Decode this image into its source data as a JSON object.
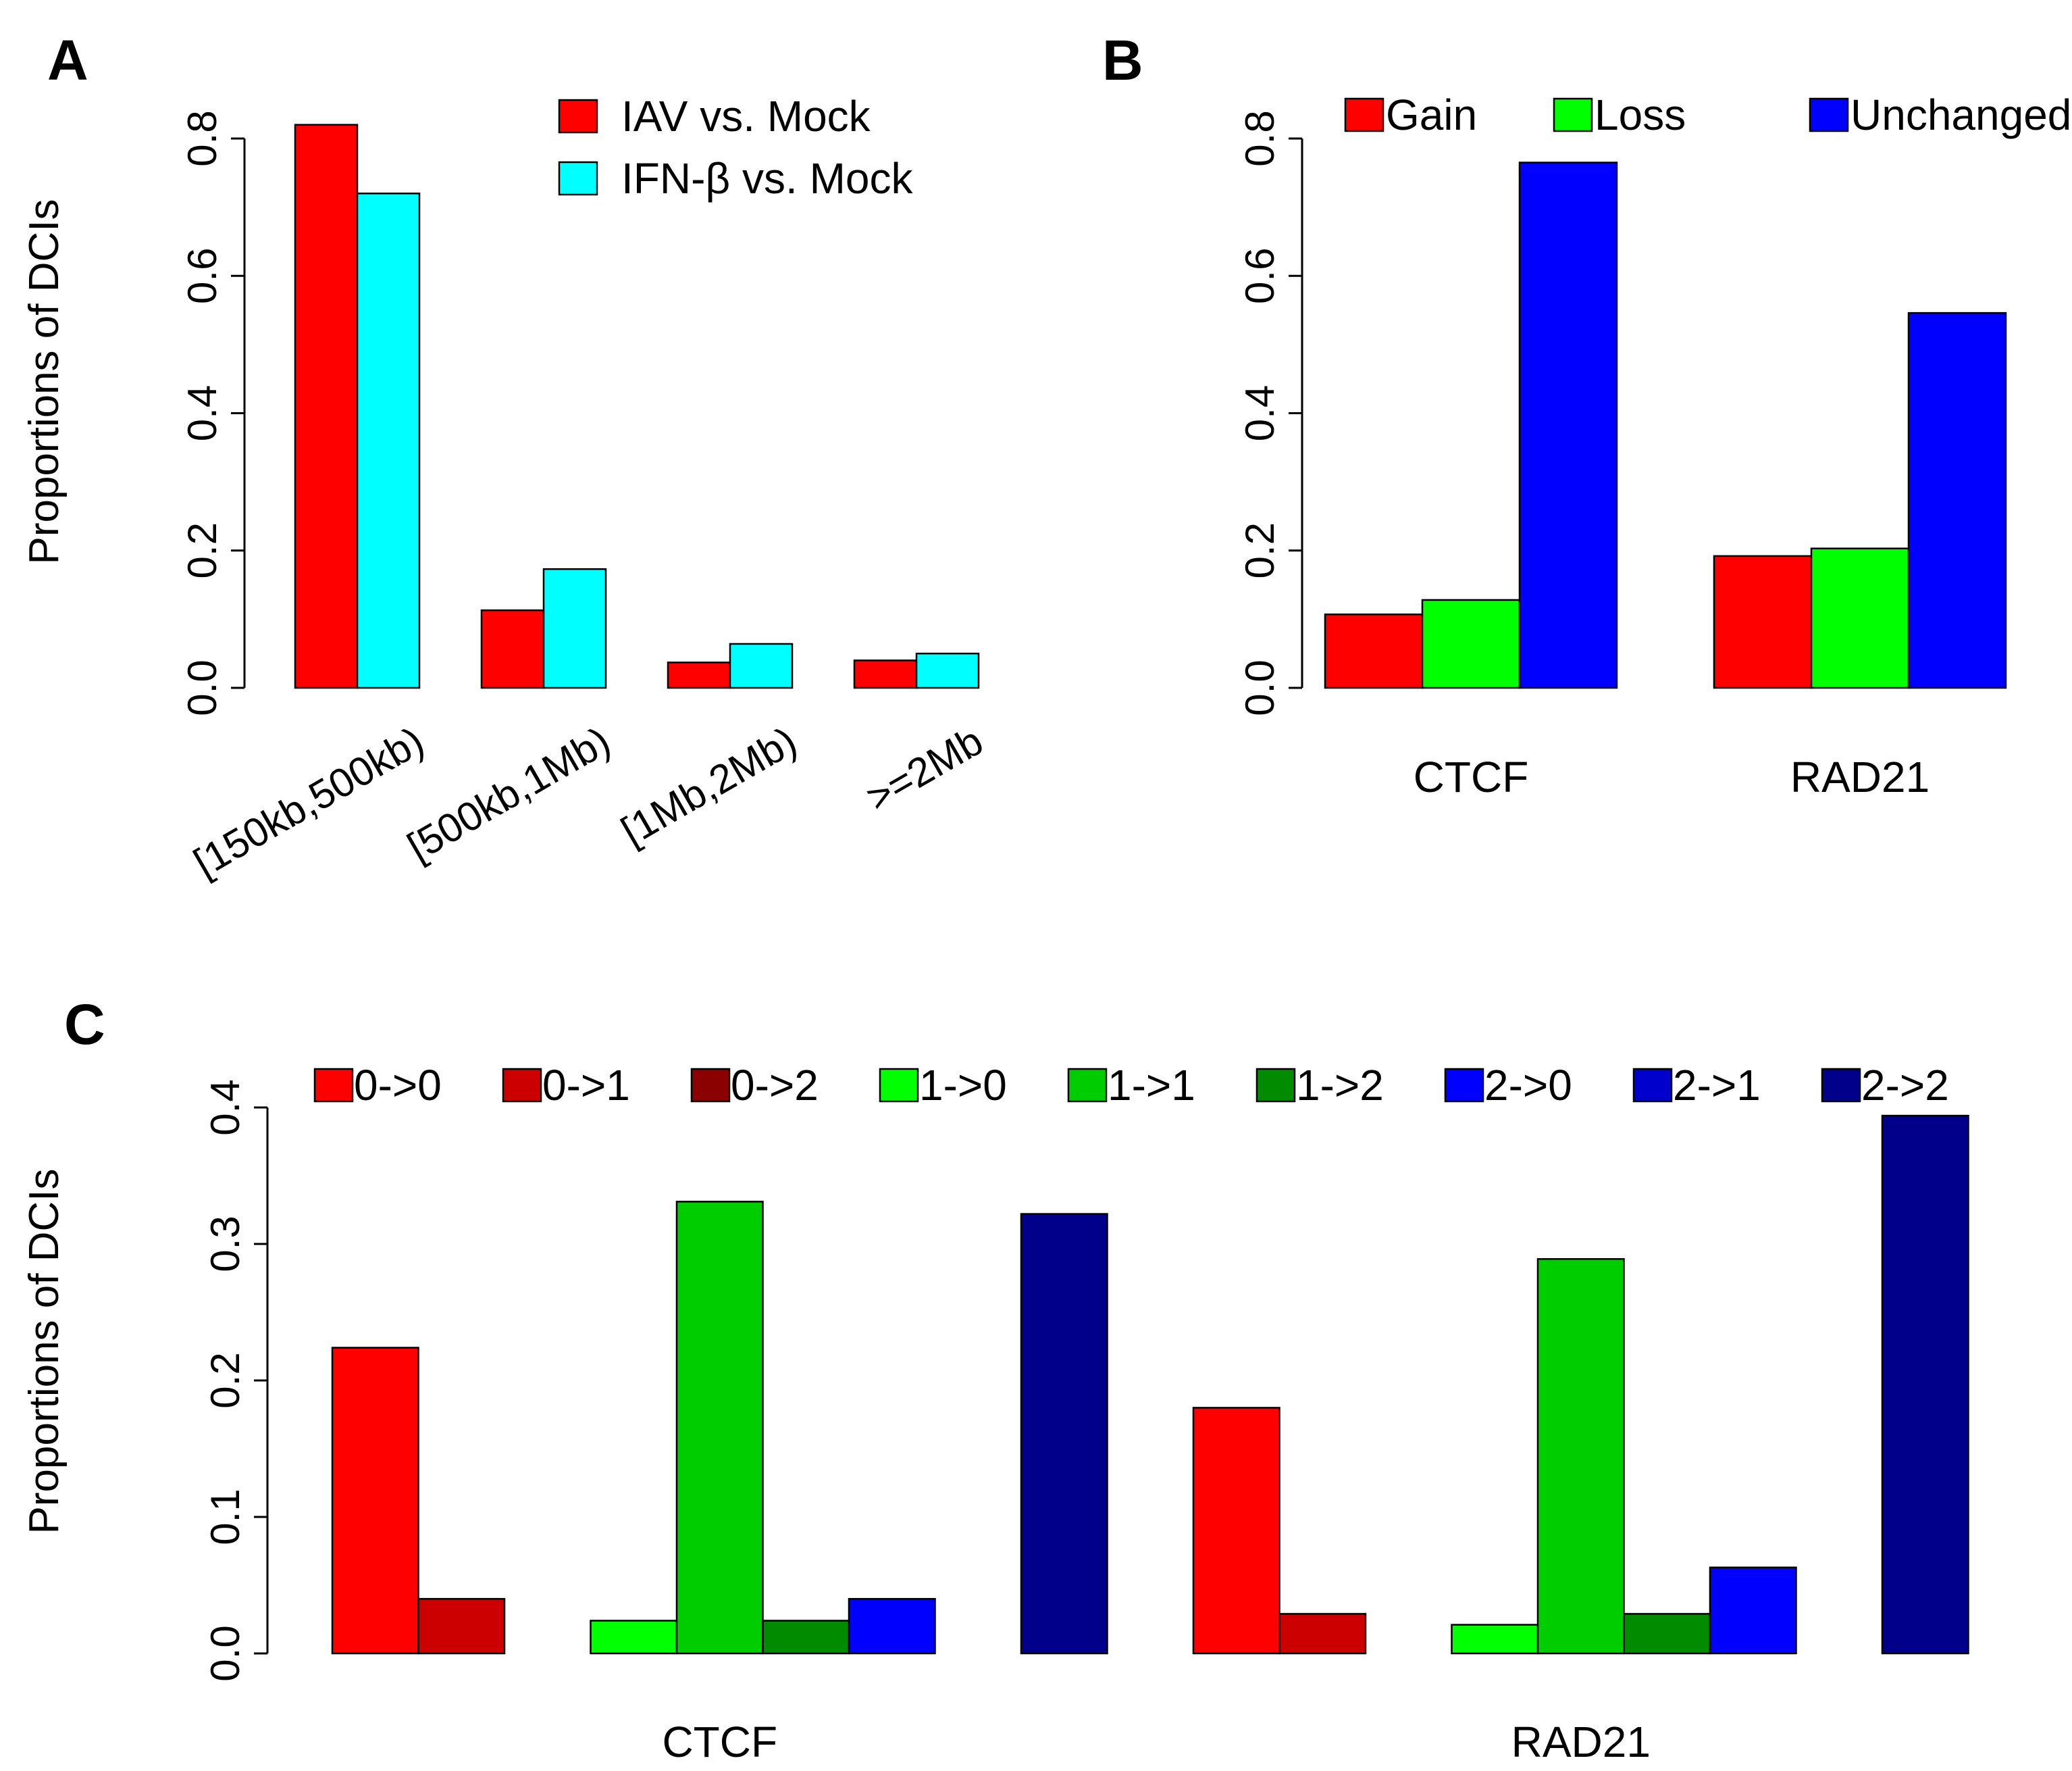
{
  "figure": {
    "panels": {
      "A": {
        "letter": "A"
      },
      "B": {
        "letter": "B"
      },
      "C": {
        "letter": "C"
      }
    }
  },
  "chart_data": [
    {
      "panel": "A",
      "type": "bar",
      "title": "",
      "xlabel": "",
      "ylabel": "Proportions of DCIs",
      "ylim": [
        0,
        0.8
      ],
      "yticks": [
        "0.0",
        "0.2",
        "0.4",
        "0.6",
        "0.8"
      ],
      "categories": [
        "[150kb,500kb)",
        "[500kb,1Mb)",
        "[1Mb,2Mb)",
        ">=2Mb"
      ],
      "series": [
        {
          "name": "IAV vs. Mock",
          "color": "#ff0000",
          "values": [
            0.82,
            0.113,
            0.037,
            0.04
          ]
        },
        {
          "name": "IFN-β vs. Mock",
          "color": "#00ffff",
          "values": [
            0.72,
            0.173,
            0.064,
            0.05
          ]
        }
      ],
      "legend": "top-right"
    },
    {
      "panel": "B",
      "type": "bar",
      "title": "",
      "xlabel": "",
      "ylabel": "",
      "ylim": [
        0,
        0.8
      ],
      "yticks": [
        "0.0",
        "0.2",
        "0.4",
        "0.6",
        "0.8"
      ],
      "categories": [
        "CTCF",
        "RAD21"
      ],
      "series": [
        {
          "name": "Gain",
          "color": "#ff0000",
          "values": [
            0.107,
            0.192
          ]
        },
        {
          "name": "Loss",
          "color": "#00ff00",
          "values": [
            0.128,
            0.203
          ]
        },
        {
          "name": "Unchanged",
          "color": "#0000ff",
          "values": [
            0.765,
            0.546
          ]
        }
      ],
      "legend": "top"
    },
    {
      "panel": "C",
      "type": "bar",
      "title": "",
      "xlabel": "",
      "ylabel": "Proportions of DCIs",
      "ylim": [
        0,
        0.4
      ],
      "yticks": [
        "0.0",
        "0.1",
        "0.2",
        "0.3",
        "0.4"
      ],
      "categories": [
        "CTCF",
        "RAD21"
      ],
      "series": [
        {
          "name": "0->0",
          "color": "#ff0000",
          "values": [
            0.224,
            0.18
          ]
        },
        {
          "name": "0->1",
          "color": "#cc0000",
          "values": [
            0.04,
            0.029
          ]
        },
        {
          "name": "0->2",
          "color": "#8b0000",
          "values": [
            0,
            0
          ]
        },
        {
          "name": "1->0",
          "color": "#00ff00",
          "values": [
            0.024,
            0.021
          ]
        },
        {
          "name": "1->1",
          "color": "#00cd00",
          "values": [
            0.331,
            0.289
          ]
        },
        {
          "name": "1->2",
          "color": "#008b00",
          "values": [
            0.024,
            0.029
          ]
        },
        {
          "name": "2->0",
          "color": "#0000ff",
          "values": [
            0.04,
            0.063
          ]
        },
        {
          "name": "2->1",
          "color": "#0000cd",
          "values": [
            0,
            0
          ]
        },
        {
          "name": "2->2",
          "color": "#00008b",
          "values": [
            0.322,
            0.394
          ]
        }
      ],
      "legend": "top"
    }
  ]
}
